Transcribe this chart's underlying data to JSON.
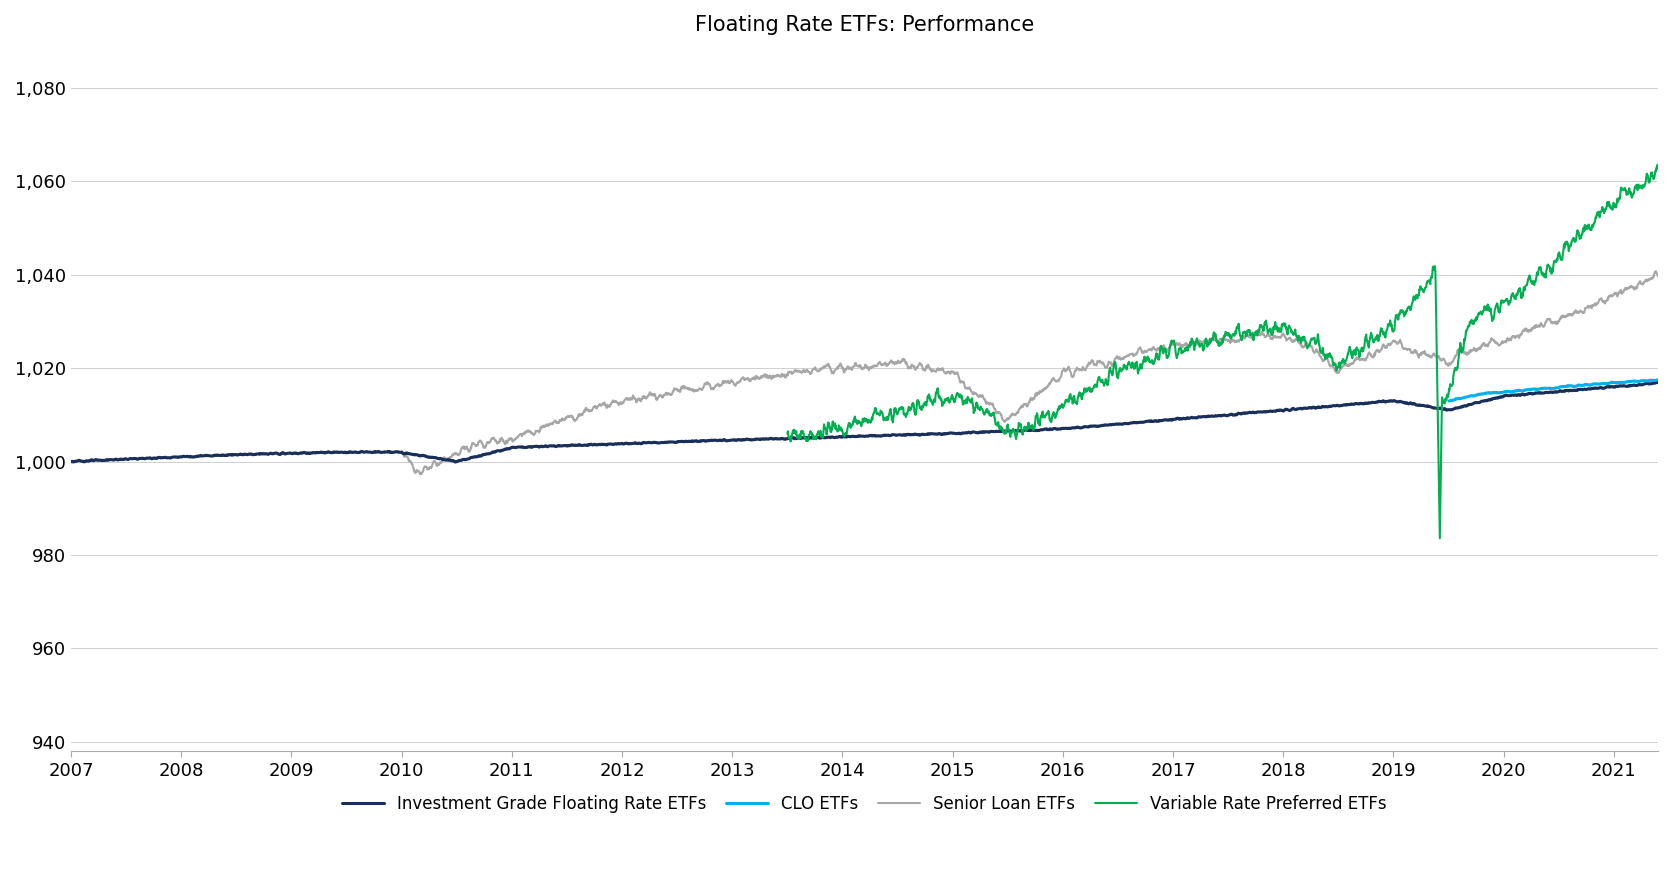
{
  "title": "Floating Rate ETFs: Performance",
  "title_fontsize": 15,
  "background_color": "#ffffff",
  "ylim": [
    938,
    1088
  ],
  "yticks": [
    940,
    960,
    980,
    1000,
    1020,
    1040,
    1060,
    1080
  ],
  "ytick_labels": [
    "940",
    "960",
    "980",
    "1,000",
    "1,020",
    "1,040",
    "1,060",
    "1,080"
  ],
  "xlim_start": 2007.0,
  "xlim_end": 2021.4,
  "xticks": [
    2007,
    2008,
    2009,
    2010,
    2011,
    2012,
    2013,
    2014,
    2015,
    2016,
    2017,
    2018,
    2019,
    2020,
    2021
  ],
  "series": {
    "ig_floating": {
      "label": "Investment Grade Floating Rate ETFs",
      "color": "#1a2e5a",
      "linewidth": 2.2
    },
    "clo": {
      "label": "CLO ETFs",
      "color": "#00b0f0",
      "linewidth": 2.2
    },
    "senior_loan": {
      "label": "Senior Loan ETFs",
      "color": "#a6a6a6",
      "linewidth": 1.5
    },
    "variable_rate": {
      "label": "Variable Rate Preferred ETFs",
      "color": "#00b050",
      "linewidth": 1.5
    }
  }
}
